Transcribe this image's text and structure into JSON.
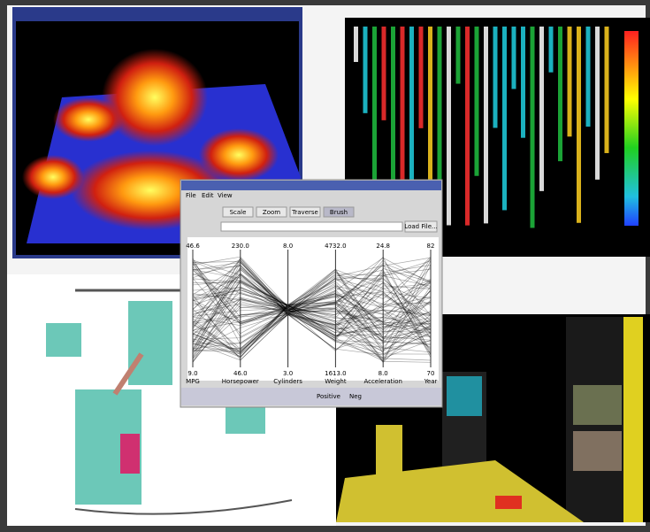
{
  "window": {
    "menu": [
      "File",
      "Edit",
      "View"
    ],
    "buttons": [
      "Scale",
      "Zoom",
      "Traverse",
      "Brush"
    ],
    "file_button": "Load File...",
    "axes": [
      {
        "name": "MPG",
        "max": "46.6",
        "min": "9.0"
      },
      {
        "name": "Horsepower",
        "max": "230.0",
        "min": "46.0"
      },
      {
        "name": "Cylinders",
        "max": "8.0",
        "min": "3.0"
      },
      {
        "name": "Weight",
        "max": "4732.0",
        "min": "1613.0"
      },
      {
        "name": "Acceleration",
        "max": "24.8",
        "min": "8.0"
      },
      {
        "name": "Year",
        "max": "82",
        "min": "70"
      }
    ],
    "options": [
      "Positive",
      "Neg"
    ]
  }
}
